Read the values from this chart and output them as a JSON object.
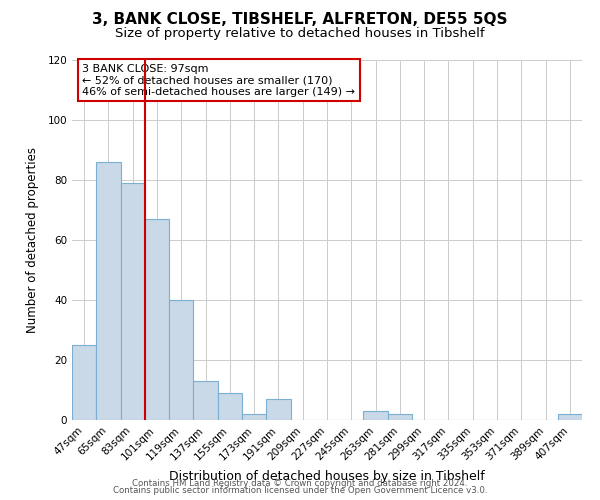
{
  "title": "3, BANK CLOSE, TIBSHELF, ALFRETON, DE55 5QS",
  "subtitle": "Size of property relative to detached houses in Tibshelf",
  "xlabel": "Distribution of detached houses by size in Tibshelf",
  "ylabel": "Number of detached properties",
  "bar_labels": [
    "47sqm",
    "65sqm",
    "83sqm",
    "101sqm",
    "119sqm",
    "137sqm",
    "155sqm",
    "173sqm",
    "191sqm",
    "209sqm",
    "227sqm",
    "245sqm",
    "263sqm",
    "281sqm",
    "299sqm",
    "317sqm",
    "335sqm",
    "353sqm",
    "371sqm",
    "389sqm",
    "407sqm"
  ],
  "bar_values": [
    25,
    86,
    79,
    67,
    40,
    13,
    9,
    2,
    7,
    0,
    0,
    0,
    3,
    2,
    0,
    0,
    0,
    0,
    0,
    0,
    2
  ],
  "bar_color": "#c9d9e8",
  "bar_edgecolor": "#7bafd4",
  "vline_x": 3,
  "vline_color": "#cc0000",
  "annotation_line1": "3 BANK CLOSE: 97sqm",
  "annotation_line2": "← 52% of detached houses are smaller (170)",
  "annotation_line3": "46% of semi-detached houses are larger (149) →",
  "ylim": [
    0,
    120
  ],
  "yticks": [
    0,
    20,
    40,
    60,
    80,
    100,
    120
  ],
  "title_fontsize": 11,
  "subtitle_fontsize": 9.5,
  "xlabel_fontsize": 9,
  "ylabel_fontsize": 8.5,
  "tick_fontsize": 7.5,
  "footer_line1": "Contains HM Land Registry data © Crown copyright and database right 2024.",
  "footer_line2": "Contains public sector information licensed under the Open Government Licence v3.0.",
  "background_color": "#ffffff",
  "grid_color": "#cccccc"
}
